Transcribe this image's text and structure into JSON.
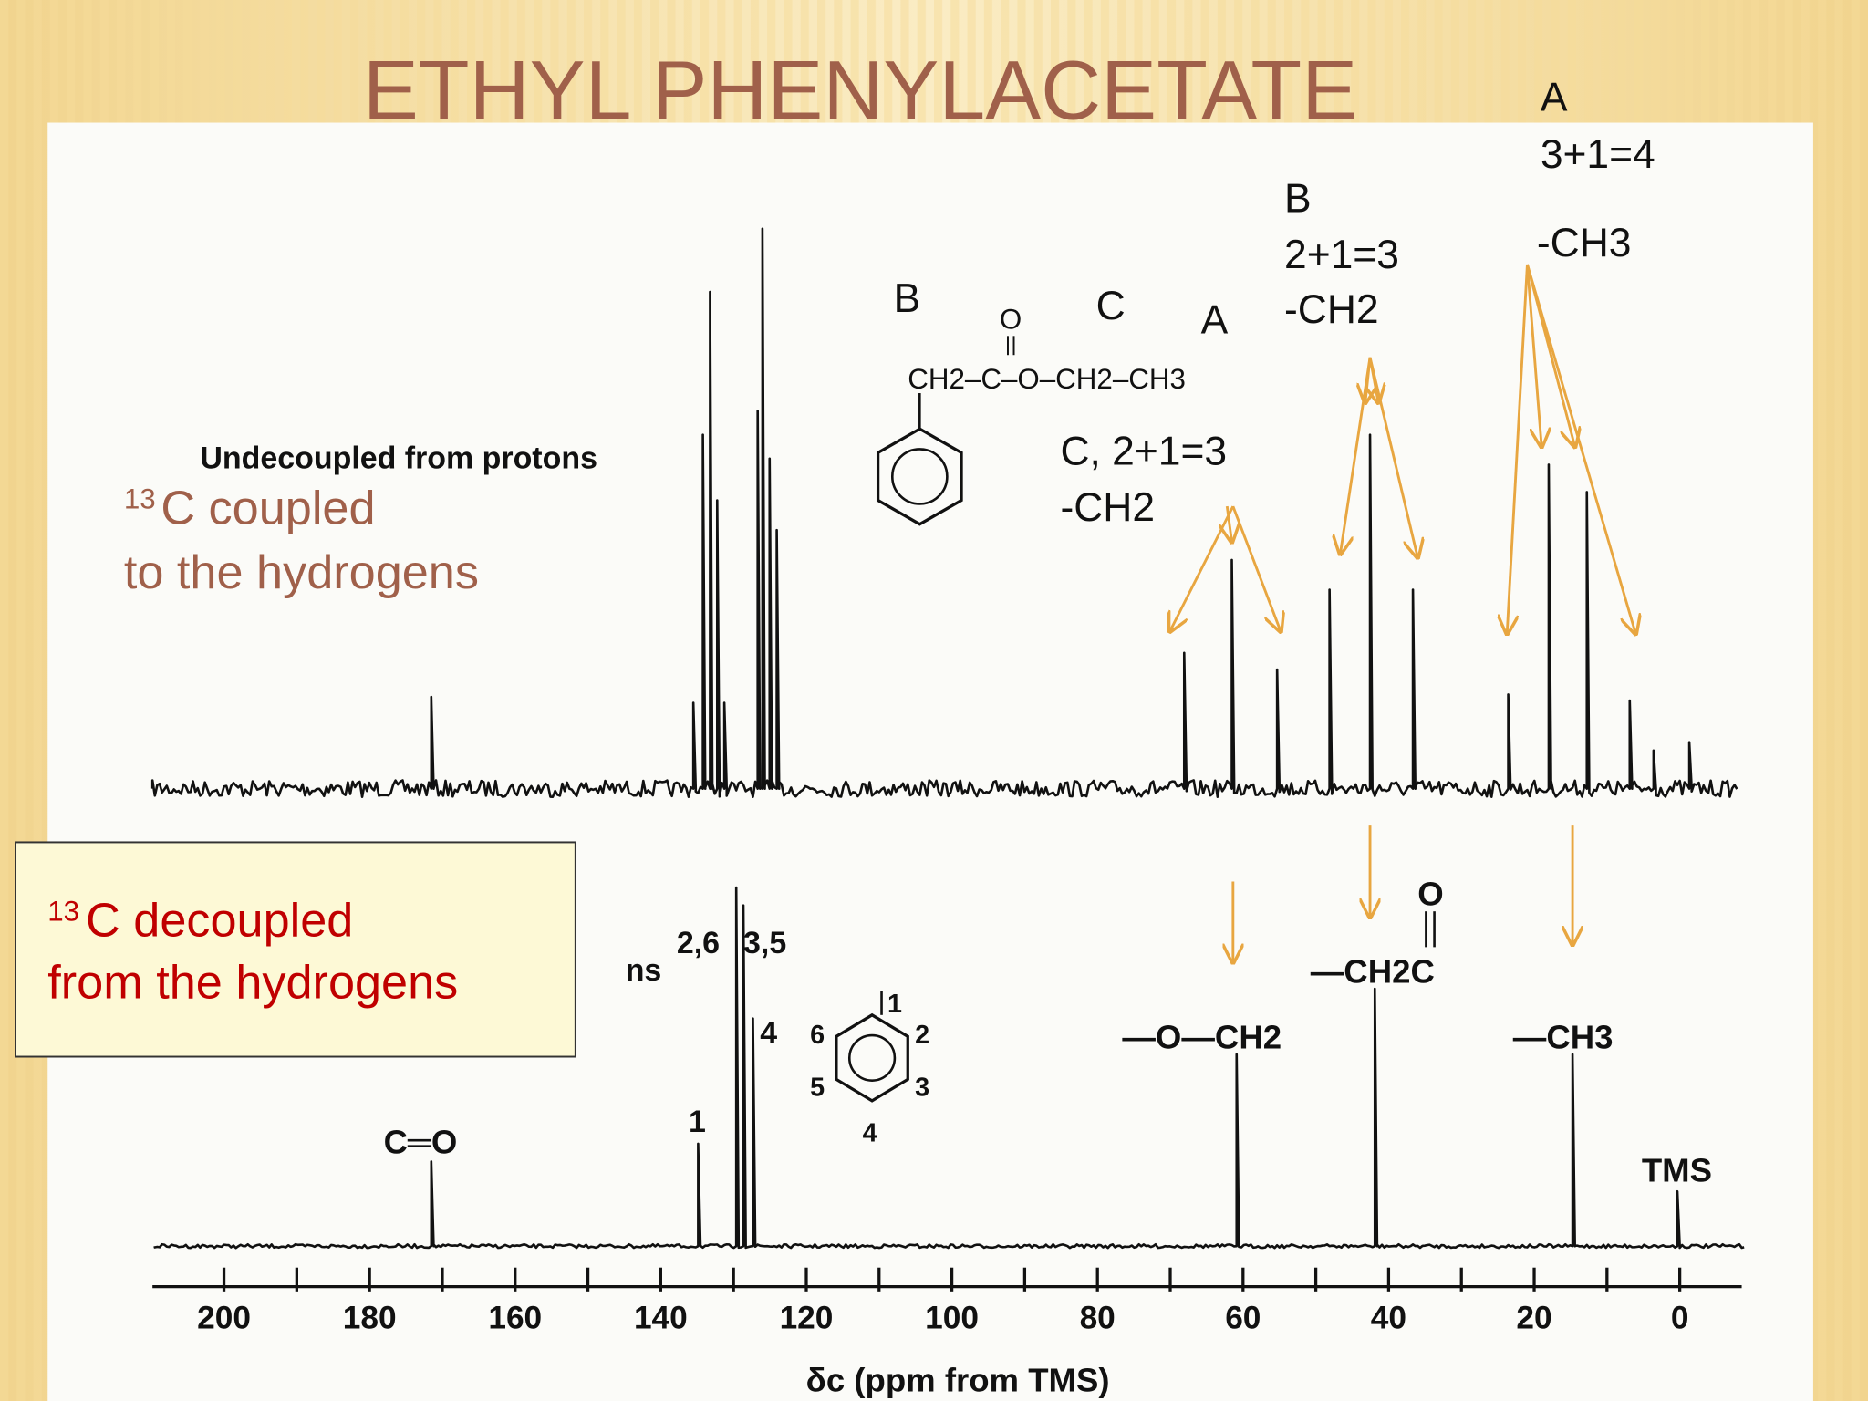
{
  "title": "ETHYL PHENYLACETATE",
  "annotations": {
    "a_group": {
      "label": "A",
      "count": "3+1=4",
      "group": "-CH3"
    },
    "b_group": {
      "label": "B",
      "count": "2+1=3",
      "group": "-CH2"
    },
    "c_group": {
      "count": "C, 2+1=3",
      "group": "-CH2"
    }
  },
  "coupled_spectrum": {
    "caption": "Undecoupled from protons",
    "note": {
      "superscript": "13",
      "lines": [
        "C coupled",
        "to the hydrogens"
      ]
    },
    "structure": {
      "labels": [
        "B",
        "C",
        "A"
      ],
      "oxygen": "O",
      "formula": "CH2–C–O–CH2–CH3"
    }
  },
  "decoupled_spectrum": {
    "note": {
      "superscript": "13",
      "lines": [
        "C decoupled",
        "from the hydrogens"
      ]
    },
    "peak_labels": {
      "ns": "ns",
      "c26": "2,6",
      "c35": "3,5",
      "c4": "4",
      "c1": "1",
      "carbonyl": "C═O",
      "och2": "—O—CH2",
      "carbonyl_o": "O",
      "ch2c": "—CH2C",
      "ch3": "—CH3",
      "tms": "TMS"
    },
    "ring_numbers": [
      "1",
      "2",
      "3",
      "4",
      "5",
      "6"
    ],
    "axis": {
      "ticks": [
        200,
        180,
        160,
        140,
        120,
        100,
        80,
        60,
        40,
        20,
        0
      ],
      "label": "δc (ppm from TMS)"
    }
  }
}
